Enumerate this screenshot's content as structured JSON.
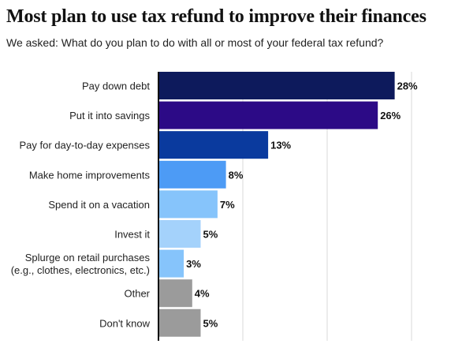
{
  "title": "Most plan to use tax refund to improve their finances",
  "subtitle": "We asked: What do you plan to do with all or most of your federal tax refund?",
  "chart_data": {
    "type": "bar",
    "orientation": "horizontal",
    "title": "Most plan to use tax refund to improve their finances",
    "subtitle": "We asked: What do you plan to do with all or most of your federal tax refund?",
    "xlim": [
      0,
      30
    ],
    "grid": true,
    "categories": [
      [
        "Pay down debt"
      ],
      [
        "Put it into savings"
      ],
      [
        "Pay for day-to-day expenses"
      ],
      [
        "Make home improvements"
      ],
      [
        "Spend it on a vacation"
      ],
      [
        "Invest it"
      ],
      [
        "Splurge on retail purchases",
        "(e.g., clothes, electronics, etc.)"
      ],
      [
        "Other"
      ],
      [
        "Don't know"
      ]
    ],
    "values": [
      28,
      26,
      13,
      8,
      7,
      5,
      3,
      4,
      5
    ],
    "value_labels": [
      "28%",
      "26%",
      "13%",
      "8%",
      "7%",
      "5%",
      "3%",
      "4%",
      "5%"
    ],
    "colors": [
      "#0d1a5c",
      "#2c0a86",
      "#0a3a9e",
      "#4d9bf5",
      "#86c4fb",
      "#a4d2fb",
      "#86c4fb",
      "#9b9b9b",
      "#9b9b9b"
    ]
  }
}
